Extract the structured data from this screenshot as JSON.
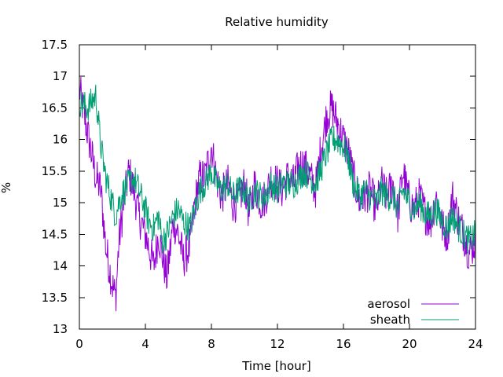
{
  "chart_data": {
    "type": "line",
    "title": "Relative humidity",
    "xlabel": "Time [hour]",
    "ylabel": "%",
    "xlim": [
      0,
      24
    ],
    "ylim": [
      13,
      17.5
    ],
    "xticks": [
      0,
      4,
      8,
      12,
      16,
      20,
      24
    ],
    "yticks": [
      13,
      13.5,
      14,
      14.5,
      15,
      15.5,
      16,
      16.5,
      17,
      17.5
    ],
    "grid": false,
    "legend": "bottom-right",
    "series": [
      {
        "name": "aerosol",
        "color": "#9400d3",
        "x": [
          0,
          0.5,
          1,
          1.3,
          1.6,
          2,
          2.2,
          2.4,
          2.7,
          3,
          3.3,
          3.6,
          4,
          4.2,
          4.5,
          4.8,
          5,
          5.3,
          5.7,
          6,
          6.3,
          6.7,
          7,
          7.3,
          7.6,
          8,
          8.3,
          8.6,
          9,
          9.3,
          9.6,
          10,
          10.3,
          10.6,
          11,
          11.3,
          11.6,
          12,
          12.3,
          12.6,
          13,
          13.3,
          13.6,
          14,
          14.3,
          14.6,
          15,
          15.3,
          15.6,
          16,
          16.3,
          16.6,
          17,
          17.3,
          17.6,
          18,
          18.3,
          18.6,
          19,
          19.3,
          19.6,
          20,
          20.3,
          20.6,
          21,
          21.3,
          21.6,
          22,
          22.3,
          22.6,
          23,
          23.3,
          23.6,
          24
        ],
        "y": [
          16.8,
          16.1,
          15.4,
          15.2,
          14.3,
          13.7,
          13.5,
          14.4,
          15.0,
          15.5,
          15.2,
          14.8,
          14.5,
          14.3,
          14.0,
          14.5,
          14.2,
          13.8,
          14.7,
          14.5,
          14.1,
          14.3,
          15.0,
          15.4,
          15.4,
          15.9,
          15.4,
          15.1,
          15.3,
          15.0,
          15.0,
          15.3,
          14.8,
          15.3,
          15.0,
          15.1,
          15.4,
          15.3,
          15.2,
          15.4,
          15.3,
          15.6,
          15.6,
          15.4,
          15.2,
          15.8,
          16.4,
          16.5,
          16.3,
          16.0,
          15.8,
          15.4,
          15.0,
          15.1,
          15.2,
          14.9,
          15.3,
          15.1,
          15.3,
          14.8,
          15.5,
          15.0,
          14.9,
          15.1,
          14.8,
          14.7,
          15.1,
          14.6,
          14.5,
          15.1,
          14.7,
          14.5,
          14.2,
          14.4
        ]
      },
      {
        "name": "sheath",
        "color": "#009e73",
        "x": [
          0,
          0.5,
          1,
          1.3,
          1.6,
          2,
          2.2,
          2.4,
          2.7,
          3,
          3.3,
          3.6,
          4,
          4.2,
          4.5,
          4.8,
          5,
          5.3,
          5.7,
          6,
          6.3,
          6.7,
          7,
          7.3,
          7.6,
          8,
          8.3,
          8.6,
          9,
          9.3,
          9.6,
          10,
          10.3,
          10.6,
          11,
          11.3,
          11.6,
          12,
          12.3,
          12.6,
          13,
          13.3,
          13.6,
          14,
          14.3,
          14.6,
          15,
          15.3,
          15.6,
          16,
          16.3,
          16.6,
          17,
          17.3,
          17.6,
          18,
          18.3,
          18.6,
          19,
          19.3,
          19.6,
          20,
          20.3,
          20.6,
          21,
          21.3,
          21.6,
          22,
          22.3,
          22.6,
          23,
          23.3,
          23.6,
          24
        ],
        "y": [
          16.6,
          16.5,
          16.7,
          15.9,
          15.4,
          15.0,
          14.8,
          15.0,
          15.2,
          15.3,
          15.4,
          15.2,
          14.9,
          14.7,
          14.6,
          14.8,
          14.4,
          14.5,
          14.8,
          14.9,
          14.7,
          14.6,
          14.9,
          15.2,
          15.3,
          15.5,
          15.3,
          15.2,
          15.3,
          15.1,
          15.2,
          15.2,
          15.0,
          15.2,
          15.1,
          15.1,
          15.3,
          15.2,
          15.3,
          15.3,
          15.3,
          15.4,
          15.5,
          15.4,
          15.3,
          15.5,
          15.8,
          16.0,
          16.0,
          15.9,
          15.7,
          15.3,
          15.1,
          15.2,
          15.1,
          15.0,
          15.2,
          15.1,
          15.1,
          14.9,
          15.2,
          15.0,
          14.9,
          15.0,
          14.8,
          14.8,
          14.9,
          14.7,
          14.6,
          14.8,
          14.6,
          14.5,
          14.4,
          14.5
        ]
      }
    ]
  }
}
